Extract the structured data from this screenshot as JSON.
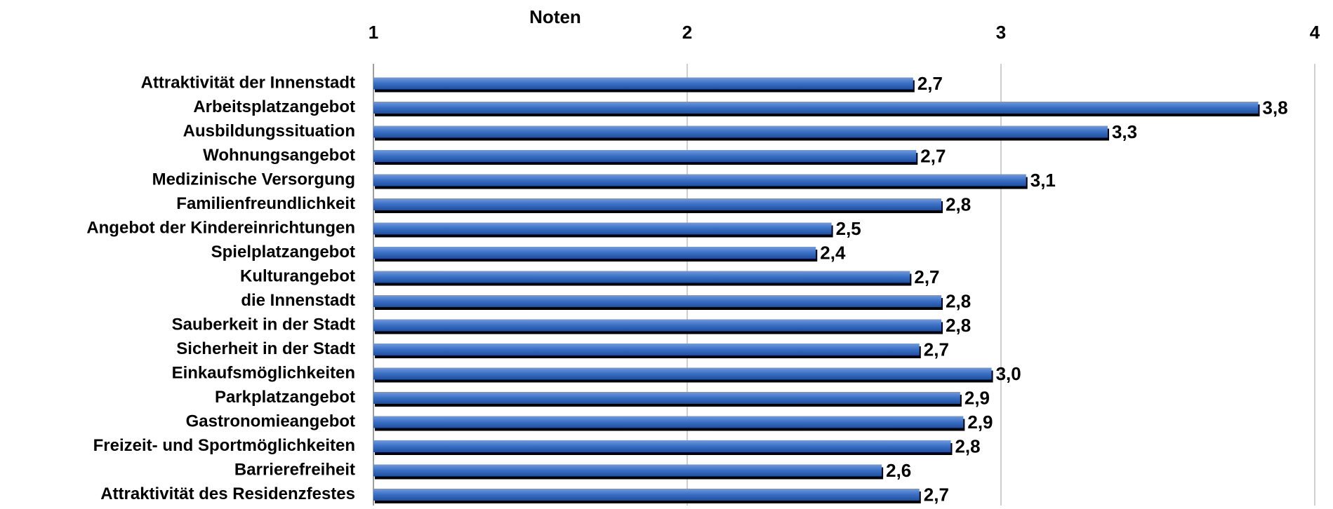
{
  "chart_data": {
    "type": "barh",
    "title": "Noten",
    "categories": [
      "Attraktivität der Innenstadt",
      "Arbeitsplatzangebot",
      "Ausbildungssituation",
      "Wohnungsangebot",
      "Medizinische Versorgung",
      "Familienfreundlichkeit",
      "Angebot der Kindereinrichtungen",
      "Spielplatzangebot",
      "Kulturangebot",
      "die Innenstadt",
      "Sauberkeit in der Stadt",
      "Sicherheit in der Stadt",
      "Einkaufsmöglichkeiten",
      "Parkplatzangebot",
      "Gastronomieangebot",
      "Freizeit- und Sportmöglichkeiten",
      "Barrierefreiheit",
      "Attraktivität des Residenzfestes"
    ],
    "values": [
      2.72,
      3.82,
      3.34,
      2.73,
      3.08,
      2.81,
      2.46,
      2.41,
      2.71,
      2.81,
      2.81,
      2.74,
      2.97,
      2.87,
      2.88,
      2.84,
      2.62,
      2.74
    ],
    "value_labels": [
      "2,7",
      "3,8",
      "3,3",
      "2,7",
      "3,1",
      "2,8",
      "2,5",
      "2,4",
      "2,7",
      "2,8",
      "2,8",
      "2,7",
      "3,0",
      "2,9",
      "2,9",
      "2,8",
      "2,6",
      "2,7"
    ],
    "color": "#3a6fc4",
    "xlim": [
      1,
      4
    ],
    "xticks": [
      1,
      2,
      3,
      4
    ],
    "grid": true
  }
}
